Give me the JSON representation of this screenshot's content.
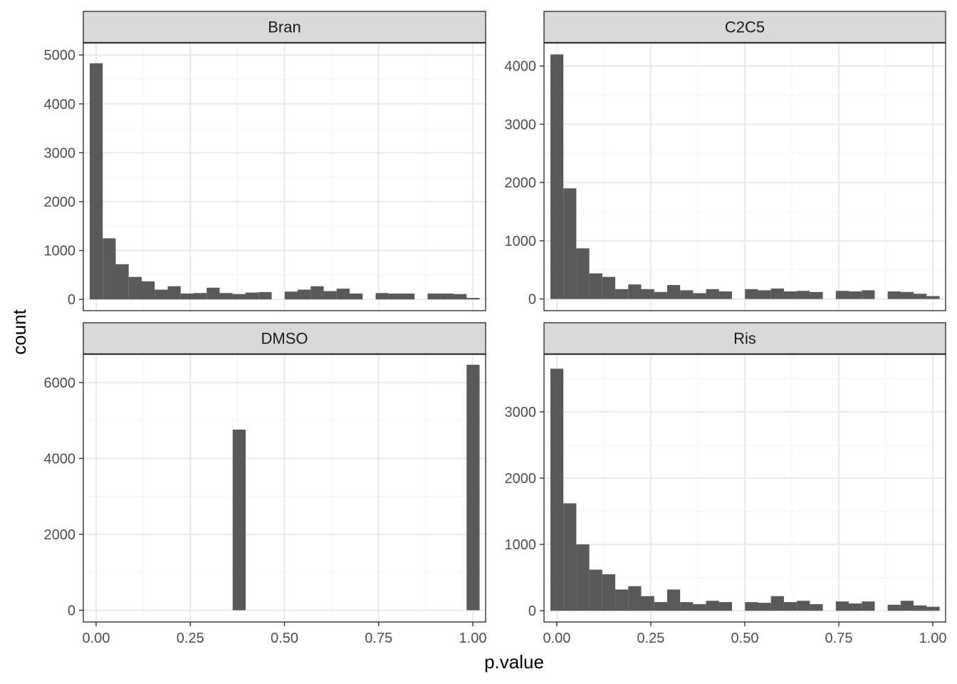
{
  "chart_data": {
    "type": "histogram-facets",
    "xlabel": "p.value",
    "ylabel": "count",
    "x_ticks": [
      0,
      0.25,
      0.5,
      0.75,
      1
    ],
    "x_tick_labels": [
      "0.00",
      "0.25",
      "0.50",
      "0.75",
      "1.00"
    ],
    "xlim": [
      -0.034,
      1.034
    ],
    "bin_width": 0.0345,
    "bin_start": -0.017,
    "colors": {
      "bar": "#595959",
      "strip": "#d9d9d9",
      "grid_major": "#ebebeb",
      "grid_minor": "#f5f5f5",
      "border": "#333333"
    },
    "facets": [
      {
        "label": "Bran",
        "ylim": [
          -230,
          5250
        ],
        "y_ticks": [
          0,
          1000,
          2000,
          3000,
          4000,
          5000
        ],
        "values": [
          4830,
          1250,
          720,
          460,
          370,
          200,
          270,
          120,
          130,
          240,
          130,
          110,
          140,
          150,
          0,
          160,
          200,
          270,
          170,
          220,
          120,
          0,
          130,
          120,
          120,
          0,
          120,
          120,
          110,
          30
        ]
      },
      {
        "label": "C2C5",
        "ylim": [
          -200,
          4400
        ],
        "y_ticks": [
          0,
          1000,
          2000,
          3000,
          4000
        ],
        "values": [
          4200,
          1900,
          870,
          440,
          380,
          170,
          250,
          170,
          120,
          240,
          150,
          100,
          170,
          130,
          0,
          170,
          150,
          180,
          130,
          140,
          120,
          0,
          140,
          130,
          150,
          0,
          130,
          120,
          90,
          50
        ]
      },
      {
        "label": "DMSO",
        "ylim": [
          -310,
          6750
        ],
        "y_ticks": [
          0,
          2000,
          4000,
          6000
        ],
        "values": [
          0,
          0,
          0,
          0,
          0,
          0,
          0,
          0,
          0,
          0,
          0,
          4760,
          0,
          0,
          0,
          0,
          0,
          0,
          0,
          0,
          0,
          0,
          0,
          0,
          0,
          0,
          0,
          0,
          0,
          6470
        ]
      },
      {
        "label": "Ris",
        "ylim": [
          -170,
          3870
        ],
        "y_ticks": [
          0,
          1000,
          2000,
          3000
        ],
        "values": [
          3650,
          1620,
          1000,
          620,
          550,
          320,
          370,
          220,
          130,
          320,
          130,
          100,
          150,
          130,
          0,
          130,
          120,
          220,
          130,
          150,
          100,
          0,
          140,
          110,
          140,
          0,
          90,
          150,
          80,
          60
        ]
      }
    ]
  }
}
